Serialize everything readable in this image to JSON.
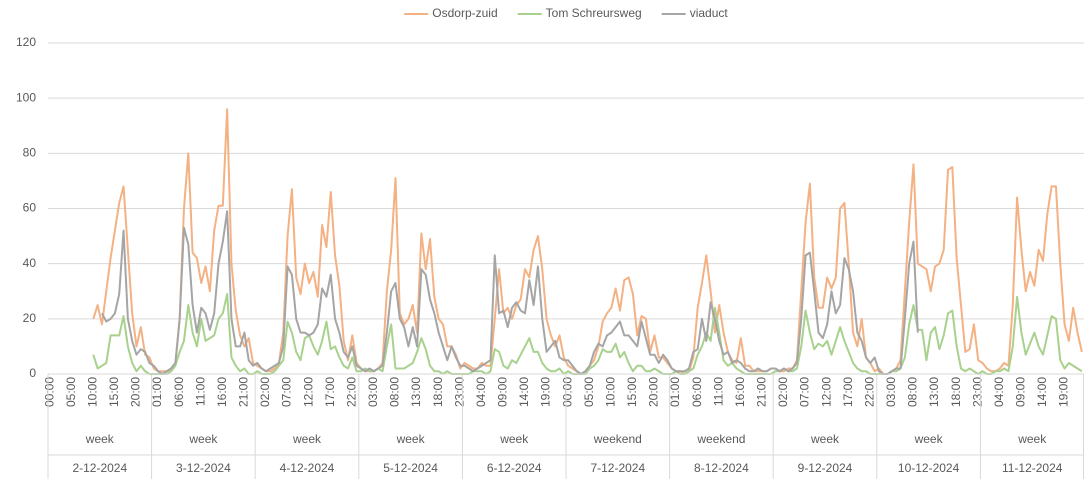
{
  "chart_data": {
    "type": "line",
    "categories": [
      "00:00",
      null,
      null,
      null,
      null,
      "05:00",
      null,
      null,
      null,
      null,
      "10:00",
      null,
      null,
      null,
      null,
      "15:00",
      null,
      null,
      null,
      null,
      "20:00",
      null,
      null,
      null,
      null,
      "01:00",
      null,
      null,
      null,
      null,
      "06:00",
      null,
      null,
      null,
      null,
      "11:00",
      null,
      null,
      null,
      null,
      "16:00",
      null,
      null,
      null,
      null,
      "21:00",
      null,
      null,
      null,
      null,
      "02:00",
      null,
      null,
      null,
      null,
      "07:00",
      null,
      null,
      null,
      null,
      "12:00",
      null,
      null,
      null,
      null,
      "17:00",
      null,
      null,
      null,
      null,
      "22:00",
      null,
      null,
      null,
      null,
      "03:00",
      null,
      null,
      null,
      null,
      "08:00",
      null,
      null,
      null,
      null,
      "13:00",
      null,
      null,
      null,
      null,
      "18:00",
      null,
      null,
      null,
      null,
      "23:00",
      null,
      null,
      null,
      null,
      "04:00",
      null,
      null,
      null,
      null,
      "09:00",
      null,
      null,
      null,
      null,
      "14:00",
      null,
      null,
      null,
      null,
      "19:00",
      null,
      null,
      null,
      null,
      "00:00",
      null,
      null,
      null,
      null,
      "05:00",
      null,
      null,
      null,
      null,
      "10:00",
      null,
      null,
      null,
      null,
      "15:00",
      null,
      null,
      null,
      null,
      "20:00",
      null,
      null,
      null,
      null,
      "01:00",
      null,
      null,
      null,
      null,
      "06:00",
      null,
      null,
      null,
      null,
      "11:00",
      null,
      null,
      null,
      null,
      "16:00",
      null,
      null,
      null,
      null,
      "21:00",
      null,
      null,
      null,
      null,
      "02:00",
      null,
      null,
      null,
      null,
      "07:00",
      null,
      null,
      null,
      null,
      "12:00",
      null,
      null,
      null,
      null,
      "17:00",
      null,
      null,
      null,
      null,
      "22:00",
      null,
      null,
      null,
      null,
      "03:00",
      null,
      null,
      null,
      null,
      "08:00",
      null,
      null,
      null,
      null,
      "13:00",
      null,
      null,
      null,
      null,
      "18:00",
      null,
      null,
      null,
      null,
      "23:00",
      null,
      null,
      null,
      null,
      "04:00",
      null,
      null,
      null,
      null,
      "09:00",
      null,
      null,
      null,
      null,
      "14:00",
      null,
      null,
      null,
      null,
      "19:00",
      null,
      null,
      null,
      null
    ],
    "days": [
      {
        "label": "2-12-2024",
        "period": "week"
      },
      {
        "label": "3-12-2024",
        "period": "week"
      },
      {
        "label": "4-12-2024",
        "period": "week"
      },
      {
        "label": "5-12-2024",
        "period": "week"
      },
      {
        "label": "6-12-2024",
        "period": "week"
      },
      {
        "label": "7-12-2024",
        "period": "weekend"
      },
      {
        "label": "8-12-2024",
        "period": "weekend"
      },
      {
        "label": "9-12-2024",
        "period": "week"
      },
      {
        "label": "10-12-2024",
        "period": "week"
      },
      {
        "label": "11-12-2024",
        "period": "week"
      }
    ],
    "series": [
      {
        "name": "Osdorp-zuid",
        "color": "#f4b183",
        "values": [
          null,
          null,
          null,
          null,
          null,
          null,
          null,
          null,
          null,
          null,
          20,
          25,
          18,
          30,
          42,
          52,
          62,
          68,
          45,
          22,
          10,
          17,
          7,
          6,
          2,
          1,
          1,
          1,
          1,
          3,
          20,
          60,
          80,
          44,
          42,
          33,
          39,
          30,
          52,
          61,
          61,
          96,
          40,
          23,
          14,
          10,
          13,
          4,
          3,
          2,
          1,
          1,
          2,
          4,
          15,
          50,
          67,
          35,
          29,
          40,
          33,
          37,
          28,
          54,
          46,
          66,
          43,
          32,
          12,
          5,
          14,
          4,
          2,
          1,
          1,
          1,
          2,
          4,
          30,
          45,
          71,
          22,
          18,
          20,
          25,
          15,
          51,
          38,
          49,
          28,
          20,
          18,
          10,
          10,
          7,
          2,
          4,
          3,
          2,
          2,
          4,
          3,
          3,
          20,
          38,
          22,
          24,
          20,
          25,
          27,
          38,
          35,
          45,
          50,
          38,
          20,
          14,
          10,
          14,
          6,
          3,
          2,
          1,
          0,
          1,
          3,
          5,
          10,
          19,
          22,
          24,
          31,
          23,
          34,
          35,
          29,
          14,
          21,
          20,
          8,
          14,
          6,
          6,
          4,
          2,
          1,
          1,
          0,
          1,
          6,
          24,
          33,
          43,
          30,
          15,
          25,
          15,
          8,
          5,
          4,
          13,
          3,
          3,
          1,
          1,
          1,
          1,
          2,
          2,
          1,
          1,
          2,
          2,
          5,
          30,
          55,
          69,
          35,
          24,
          24,
          35,
          31,
          35,
          60,
          62,
          40,
          15,
          10,
          20,
          6,
          4,
          1,
          2,
          0,
          0,
          1,
          2,
          5,
          30,
          55,
          76,
          40,
          39,
          38,
          30,
          39,
          40,
          45,
          74,
          75,
          42,
          25,
          8,
          9,
          18,
          5,
          4,
          2,
          1,
          1,
          2,
          4,
          3,
          25,
          64,
          45,
          30,
          37,
          32,
          45,
          41,
          58,
          68,
          68,
          40,
          18,
          12,
          24,
          15,
          8
        ]
      },
      {
        "name": "Tom Schreursweg",
        "color": "#a9d18e",
        "values": [
          null,
          null,
          null,
          null,
          null,
          null,
          null,
          null,
          null,
          null,
          7,
          2,
          3,
          4,
          14,
          14,
          14,
          21,
          10,
          4,
          1,
          3,
          1,
          0,
          0,
          0,
          0,
          0,
          1,
          3,
          8,
          12,
          25,
          15,
          10,
          20,
          12,
          13,
          14,
          20,
          22,
          29,
          6,
          3,
          1,
          2,
          0,
          0,
          1,
          0,
          0,
          0,
          1,
          3,
          5,
          19,
          15,
          8,
          5,
          13,
          14,
          10,
          7,
          12,
          19,
          9,
          10,
          6,
          3,
          2,
          6,
          1,
          1,
          2,
          1,
          1,
          2,
          1,
          10,
          18,
          2,
          2,
          2,
          3,
          4,
          8,
          13,
          9,
          3,
          1,
          1,
          0,
          1,
          0,
          0,
          0,
          0,
          0,
          1,
          1,
          1,
          0,
          1,
          9,
          8,
          3,
          2,
          5,
          4,
          7,
          10,
          13,
          8,
          8,
          4,
          2,
          1,
          1,
          2,
          0,
          1,
          0,
          0,
          0,
          0,
          2,
          3,
          5,
          9,
          8,
          8,
          11,
          6,
          8,
          4,
          1,
          3,
          3,
          1,
          1,
          2,
          1,
          0,
          0,
          0,
          1,
          0,
          0,
          1,
          2,
          7,
          10,
          15,
          12,
          24,
          15,
          5,
          3,
          4,
          2,
          1,
          0,
          0,
          0,
          0,
          0,
          0,
          0,
          1,
          1,
          2,
          1,
          1,
          2,
          10,
          23,
          15,
          9,
          11,
          10,
          12,
          7,
          12,
          17,
          12,
          8,
          4,
          2,
          1,
          1,
          0,
          0,
          0,
          0,
          0,
          1,
          1,
          2,
          6,
          18,
          25,
          16,
          16,
          5,
          15,
          17,
          9,
          14,
          22,
          23,
          10,
          2,
          1,
          2,
          1,
          0,
          1,
          0,
          0,
          1,
          1,
          2,
          1,
          10,
          28,
          15,
          7,
          11,
          15,
          10,
          7,
          14,
          21,
          20,
          5,
          2,
          4,
          3,
          2,
          1
        ]
      },
      {
        "name": "viaduct",
        "color": "#a5a5a5",
        "values": [
          null,
          null,
          null,
          null,
          null,
          null,
          null,
          null,
          null,
          null,
          null,
          null,
          22,
          19,
          20,
          22,
          29,
          52,
          20,
          12,
          7,
          9,
          8,
          4,
          3,
          1,
          0,
          1,
          2,
          4,
          20,
          53,
          47,
          25,
          15,
          24,
          22,
          16,
          22,
          40,
          48,
          59,
          20,
          10,
          10,
          15,
          5,
          3,
          4,
          2,
          1,
          2,
          3,
          4,
          10,
          39,
          36,
          20,
          15,
          15,
          14,
          15,
          18,
          31,
          28,
          36,
          20,
          15,
          8,
          6,
          10,
          3,
          2,
          1,
          2,
          1,
          2,
          3,
          15,
          30,
          33,
          20,
          17,
          10,
          17,
          10,
          38,
          36,
          27,
          22,
          15,
          10,
          5,
          10,
          6,
          3,
          3,
          2,
          1,
          2,
          3,
          4,
          5,
          43,
          22,
          23,
          17,
          24,
          26,
          23,
          22,
          34,
          25,
          39,
          20,
          8,
          10,
          12,
          6,
          5,
          5,
          3,
          1,
          0,
          1,
          3,
          8,
          11,
          10,
          14,
          15,
          17,
          19,
          14,
          14,
          12,
          10,
          19,
          13,
          7,
          7,
          4,
          7,
          5,
          2,
          1,
          1,
          1,
          2,
          8,
          9,
          20,
          12,
          26,
          20,
          12,
          7,
          8,
          4,
          5,
          4,
          2,
          1,
          1,
          2,
          1,
          1,
          2,
          2,
          1,
          2,
          1,
          2,
          4,
          20,
          43,
          44,
          30,
          15,
          13,
          18,
          30,
          22,
          25,
          42,
          38,
          30,
          15,
          12,
          6,
          4,
          6,
          1,
          0,
          0,
          1,
          2,
          2,
          20,
          40,
          48,
          15,
          null,
          null,
          null,
          null,
          null,
          null,
          null,
          null,
          null,
          null,
          null,
          null,
          null,
          null,
          null,
          null,
          null,
          null,
          null,
          null,
          null,
          null,
          null,
          null,
          null,
          null,
          null,
          null,
          null,
          null,
          null,
          null,
          null,
          null,
          null,
          null,
          null,
          null
        ]
      }
    ],
    "ylim": [
      0,
      120
    ],
    "yticks": [
      0,
      20,
      40,
      60,
      80,
      100,
      120
    ],
    "grid": true,
    "legend": "top"
  }
}
